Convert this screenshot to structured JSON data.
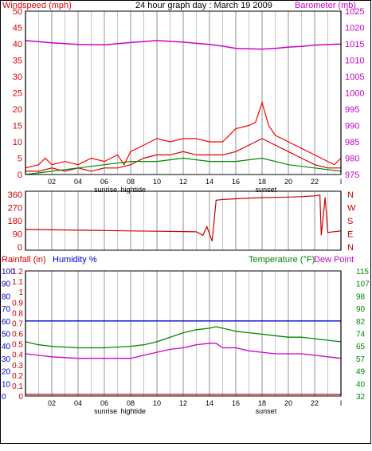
{
  "colors": {
    "wind": "#dd0000",
    "gust": "#ff0000",
    "avg_wind": "#0000cc",
    "gust_green": "#008800",
    "barometer": "#cc00cc",
    "direction": "#cc0000",
    "humidity": "#0000cc",
    "temperature": "#008800",
    "dewpoint": "#cc00cc",
    "rain": "#cc0000",
    "grid": "#c8c8c8",
    "axis_dark": "#000000"
  },
  "chart_data": [
    {
      "type": "line",
      "title": "24 hour graph day : March 19 2009",
      "left_axis_label": "Windspeed (mph)",
      "right_axis_label": "Barometer (mb)",
      "left_ticks": [
        "0",
        "5",
        "10",
        "15",
        "20",
        "25",
        "30",
        "35",
        "40",
        "45",
        "50"
      ],
      "right_ticks": [
        "975",
        "980",
        "985",
        "990",
        "995",
        "1000",
        "1005",
        "1010",
        "1015",
        "1020",
        "1025"
      ],
      "ylim_left": [
        0,
        50
      ],
      "ylim_right": [
        975,
        1025
      ],
      "x_ticks": [
        "02",
        "04",
        "06",
        "08",
        "10",
        "12",
        "14",
        "16",
        "18",
        "20",
        "22",
        "I"
      ],
      "xlim_hours": [
        0,
        24
      ],
      "events": [
        {
          "label": "sunrise",
          "hour": 6.1
        },
        {
          "label": "hightide",
          "hour": 8.2
        },
        {
          "label": "sunset",
          "hour": 18.3
        }
      ],
      "series": [
        {
          "name": "gust",
          "axis": "left",
          "hours": [
            0,
            1,
            1.5,
            2,
            3,
            4,
            5,
            6,
            7,
            7.5,
            8,
            9,
            10,
            11,
            12,
            13,
            14,
            15,
            15.5,
            16,
            17,
            17.5,
            18,
            18.5,
            19,
            20,
            21,
            22,
            23,
            23.5,
            24
          ],
          "values": [
            2,
            3,
            5,
            3,
            4,
            3,
            5,
            4,
            6,
            3,
            7,
            9,
            11,
            10,
            11,
            11,
            10,
            10,
            12,
            14,
            15,
            16,
            22,
            15,
            12,
            10,
            8,
            6,
            4,
            3,
            5
          ]
        },
        {
          "name": "wind",
          "axis": "left",
          "hours": [
            0,
            1,
            2,
            3,
            4,
            5,
            6,
            7,
            8,
            9,
            10,
            11,
            12,
            13,
            14,
            15,
            16,
            17,
            18,
            19,
            20,
            21,
            22,
            23,
            24
          ],
          "values": [
            1,
            1,
            2,
            1,
            2,
            1,
            2,
            2,
            3,
            5,
            6,
            6,
            7,
            6,
            6,
            6,
            7,
            9,
            11,
            9,
            7,
            5,
            3,
            2,
            2
          ]
        },
        {
          "name": "gust_green",
          "axis": "left",
          "hours": [
            0,
            2,
            4,
            6,
            8,
            10,
            12,
            14,
            16,
            18,
            20,
            22,
            24
          ],
          "values": [
            0,
            1,
            2,
            3,
            4,
            4,
            5,
            4,
            4,
            5,
            3,
            2,
            1
          ]
        },
        {
          "name": "barometer",
          "axis": "right",
          "hours": [
            0,
            2,
            4,
            6,
            8,
            10,
            12,
            14,
            15,
            16,
            17,
            18,
            19,
            20,
            21,
            22,
            23,
            24
          ],
          "values": [
            1016,
            1015.3,
            1014.8,
            1014.7,
            1015.4,
            1016,
            1015.5,
            1014.8,
            1014.3,
            1013.6,
            1013.5,
            1013.4,
            1013.6,
            1014,
            1014.2,
            1014.6,
            1014.8,
            1014.9
          ]
        }
      ]
    },
    {
      "type": "line",
      "left_ticks": [
        "360",
        "270",
        "180",
        "90",
        "0"
      ],
      "right_labels": [
        "N",
        "W",
        "S",
        "E",
        "N"
      ],
      "ylim": [
        0,
        360
      ],
      "x_ticks": [],
      "series": [
        {
          "name": "direction",
          "hours": [
            0,
            2,
            4,
            6,
            8,
            10,
            12,
            13,
            13.5,
            13.8,
            14.2,
            14.5,
            15,
            16,
            17,
            18,
            19,
            20,
            21,
            22,
            22.4,
            22.5,
            22.8,
            23,
            24
          ],
          "values": [
            120,
            118,
            115,
            113,
            110,
            108,
            106,
            104,
            80,
            140,
            40,
            320,
            325,
            330,
            335,
            338,
            340,
            342,
            345,
            350,
            355,
            80,
            340,
            100,
            110
          ]
        }
      ]
    },
    {
      "type": "line",
      "left_label": "Rainfall (in)",
      "humidity_label": "Humidity %",
      "right_label": "Temperature (°F)",
      "dewpoint_label": "Dew Point",
      "rain_ticks": [
        "0",
        "0.1",
        "0.2",
        "0.3",
        "0.4",
        "0.5",
        "0.6",
        "0.7",
        "0.8",
        "0.9",
        "1",
        "1.1",
        "1.2"
      ],
      "humidity_ticks": [
        "0",
        "10",
        "20",
        "30",
        "40",
        "50",
        "60",
        "70",
        "80",
        "90",
        "100"
      ],
      "temp_ticks": [
        "32",
        "40",
        "49",
        "57",
        "65",
        "74",
        "82",
        "90",
        "98",
        "107",
        "115"
      ],
      "ylim_humidity": [
        0,
        100
      ],
      "ylim_temp": [
        32,
        115
      ],
      "x_ticks": [
        "02",
        "04",
        "06",
        "08",
        "10",
        "12",
        "14",
        "16",
        "18",
        "20",
        "22",
        "I"
      ],
      "events": [
        {
          "label": "sunrise",
          "hour": 6.1
        },
        {
          "label": "hightide",
          "hour": 8.2
        },
        {
          "label": "sunset",
          "hour": 18.3
        }
      ],
      "series": [
        {
          "name": "humidity",
          "hours": [
            0,
            24
          ],
          "values": [
            60,
            60
          ]
        },
        {
          "name": "rain",
          "hours": [
            0,
            24
          ],
          "values": [
            0,
            0
          ]
        },
        {
          "name": "temperature",
          "hours": [
            0,
            1,
            2,
            4,
            6,
            8,
            9,
            10,
            11,
            12,
            13,
            14,
            14.5,
            15,
            16,
            17,
            18,
            19,
            20,
            21,
            22,
            23,
            24
          ],
          "values": [
            68,
            66,
            65,
            64,
            64,
            65,
            66,
            68,
            71,
            74,
            76,
            77,
            78,
            77,
            75,
            74,
            73,
            72,
            71,
            71,
            70,
            69,
            68
          ]
        },
        {
          "name": "dewpoint",
          "hours": [
            0,
            1,
            2,
            4,
            6,
            8,
            9,
            10,
            11,
            12,
            13,
            14,
            14.5,
            15,
            16,
            17,
            18,
            19,
            20,
            21,
            22,
            23,
            24
          ],
          "values": [
            60,
            59,
            58,
            57,
            57,
            57,
            59,
            61,
            63,
            64,
            66,
            67,
            67,
            64,
            64,
            62,
            61,
            60,
            60,
            60,
            59,
            58,
            57
          ]
        }
      ]
    }
  ]
}
